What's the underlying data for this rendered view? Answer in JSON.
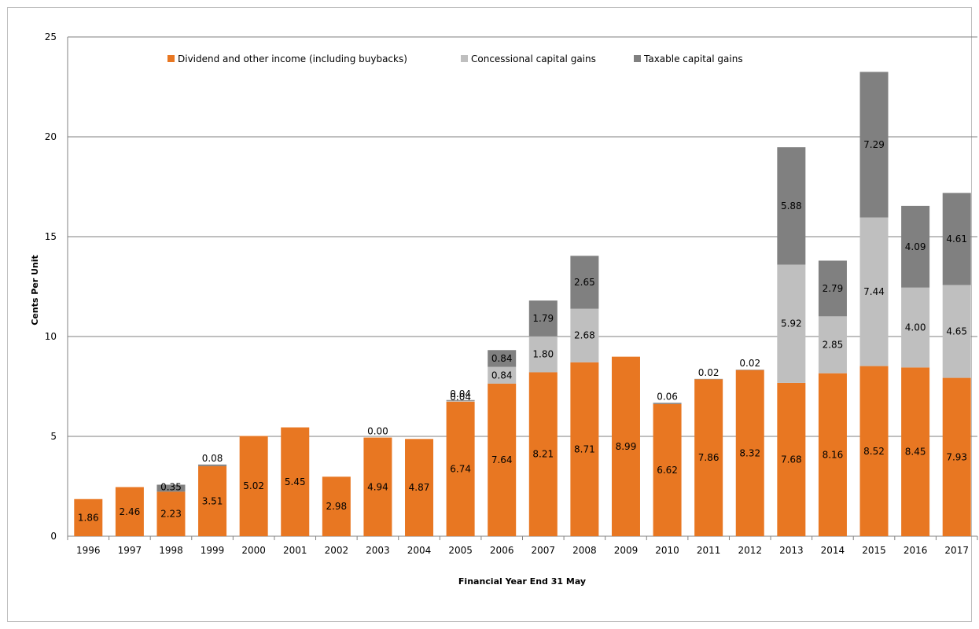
{
  "chart_data": {
    "type": "bar",
    "stacked": true,
    "title": "",
    "xlabel": "Financial  Year End 31 May",
    "ylabel": "Cents Per Unit",
    "ylim": [
      0,
      25
    ],
    "yticks": [
      "0",
      "5",
      "10",
      "15",
      "20",
      "25"
    ],
    "grid": "horizontal",
    "legend_position": "top",
    "categories": [
      "1996",
      "1997",
      "1998",
      "1999",
      "2000",
      "2001",
      "2002",
      "2003",
      "2004",
      "2005",
      "2006",
      "2007",
      "2008",
      "2009",
      "2010",
      "2011",
      "2012",
      "2013",
      "2014",
      "2015",
      "2016",
      "2017"
    ],
    "series": [
      {
        "name": "Dividend and other income (including buybacks)",
        "color": "#e87722",
        "values": [
          1.86,
          2.46,
          2.23,
          3.51,
          5.02,
          5.45,
          2.98,
          4.94,
          4.87,
          6.74,
          7.64,
          8.21,
          8.71,
          8.99,
          6.62,
          7.86,
          8.32,
          7.68,
          8.16,
          8.52,
          8.45,
          7.93
        ],
        "labels": [
          "1.86",
          "2.46",
          "2.23",
          "3.51",
          "5.02",
          "5.45",
          "2.98",
          "4.94",
          "4.87",
          "6.74",
          "7.64",
          "8.21",
          "8.71",
          "8.99",
          "6.62",
          "7.86",
          "8.32",
          "7.68",
          "8.16",
          "8.52",
          "8.45",
          "7.93"
        ]
      },
      {
        "name": "Concessional capital gains",
        "color": "#bfbfbf",
        "values": [
          0,
          0,
          0,
          0,
          0,
          0,
          0,
          0,
          0,
          0.04,
          0.84,
          1.8,
          2.68,
          0,
          0,
          0,
          0,
          5.92,
          2.85,
          7.44,
          4.0,
          4.65
        ],
        "labels": [
          null,
          null,
          null,
          null,
          null,
          null,
          null,
          null,
          null,
          "0.04",
          "0.84",
          "1.80",
          "2.68",
          null,
          null,
          null,
          null,
          "5.92",
          "2.85",
          "7.44",
          "4.00",
          "4.65"
        ]
      },
      {
        "name": "Taxable capital gains",
        "color": "#808080",
        "values": [
          0,
          0,
          0.35,
          0.08,
          0,
          0,
          0,
          0.0,
          0,
          0.04,
          0.84,
          1.79,
          2.65,
          0,
          0.06,
          0.02,
          0.02,
          5.88,
          2.79,
          7.29,
          4.09,
          4.61
        ],
        "labels": [
          null,
          null,
          "0.35",
          "0.08",
          null,
          null,
          null,
          "0.00",
          null,
          "0.04",
          "0.84",
          "1.79",
          "2.65",
          null,
          "0.06",
          "0.02",
          "0.02",
          "5.88",
          "2.79",
          "7.29",
          "4.09",
          "4.61"
        ],
        "label_above": [
          false,
          false,
          false,
          true,
          false,
          false,
          false,
          true,
          false,
          true,
          false,
          false,
          false,
          false,
          true,
          true,
          true,
          false,
          false,
          false,
          false,
          false
        ]
      }
    ]
  }
}
